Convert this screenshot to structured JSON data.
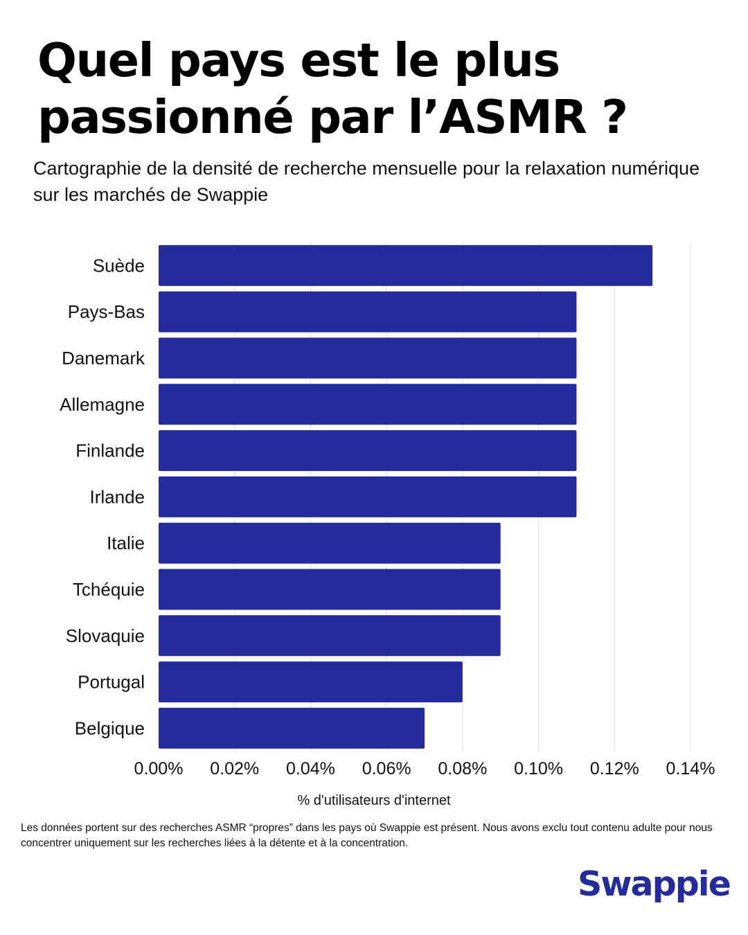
{
  "title": "Quel pays est le plus passionné par l’ASMR ?",
  "subtitle": "Cartographie de la densité de recherche mensuelle pour la relaxation numérique sur les marchés de Swappie",
  "footnote": "Les données portent sur des recherches ASMR “propres” dans les pays où Swappie est présent. Nous avons exclu tout contenu adulte pour nous concentrer uniquement sur les recherches liées à la détente et à la concentration.",
  "brand": {
    "name": "Swappie",
    "color": "#232b9d"
  },
  "colors": {
    "bar": "#232b9d",
    "grid": "#dcdcdc"
  },
  "chart_data": {
    "type": "bar",
    "orientation": "horizontal",
    "categories": [
      "Suède",
      "Pays-Bas",
      "Danemark",
      "Allemagne",
      "Finlande",
      "Irlande",
      "Italie",
      "Tchéquie",
      "Slovaquie",
      "Portugal",
      "Belgique"
    ],
    "values": [
      0.13,
      0.11,
      0.11,
      0.11,
      0.11,
      0.11,
      0.09,
      0.09,
      0.09,
      0.08,
      0.07
    ],
    "xlabel": "% d'utilisateurs d'internet",
    "ylabel": "",
    "xlim": [
      0,
      0.14
    ],
    "xticks": [
      0,
      0.02,
      0.04,
      0.06,
      0.08,
      0.1,
      0.12,
      0.14
    ],
    "xtick_labels": [
      "0.00%",
      "0.02%",
      "0.04%",
      "0.06%",
      "0.08%",
      "0.10%",
      "0.12%",
      "0.14%"
    ],
    "grid": true
  }
}
